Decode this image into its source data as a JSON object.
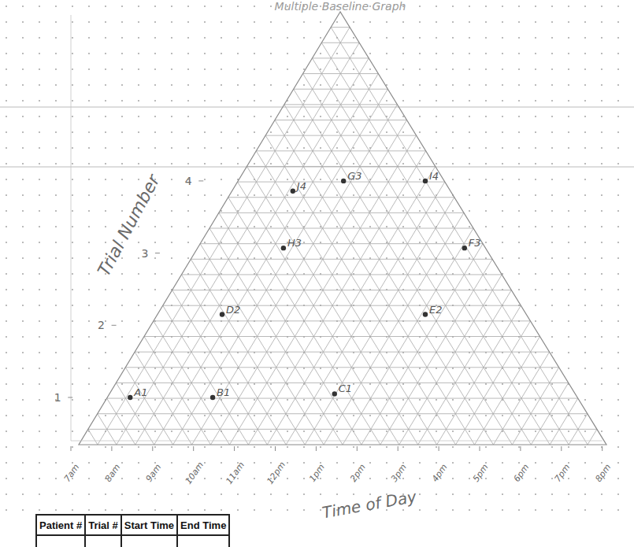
{
  "chart_data": {
    "type": "scatter",
    "title": "Multiple Baseline Graph",
    "x_label": "Time of Day",
    "y_label": "Trial Number",
    "x": [
      8.45,
      10.47,
      13.45,
      10.7,
      15.67,
      12.2,
      16.63,
      12.43,
      13.67,
      15.67
    ],
    "values": [
      1,
      1,
      1.05,
      2.15,
      2.15,
      3.07,
      3.07,
      3.86,
      4,
      4
    ],
    "point_labels": [
      "A1",
      "B1",
      "C1",
      "D2",
      "E2",
      "H3",
      "F3",
      "J4",
      "G3",
      "I4"
    ],
    "color": "#333333",
    "marker": "circle",
    "xlim": [
      7,
      20
    ],
    "ylim": [
      0.4,
      6.3
    ],
    "xticks": [
      {
        "value": 7,
        "label": "7am"
      },
      {
        "value": 8,
        "label": "8am"
      },
      {
        "value": 9,
        "label": "9am"
      },
      {
        "value": 10,
        "label": "10am"
      },
      {
        "value": 11,
        "label": "11am"
      },
      {
        "value": 12,
        "label": "12pm"
      },
      {
        "value": 13,
        "label": "1pm"
      },
      {
        "value": 14,
        "label": "2pm"
      },
      {
        "value": 15,
        "label": "3pm"
      },
      {
        "value": 16,
        "label": "4pm"
      },
      {
        "value": 17,
        "label": "5pm"
      },
      {
        "value": 18,
        "label": "6pm"
      },
      {
        "value": 19,
        "label": "7pm"
      },
      {
        "value": 20,
        "label": "8pm"
      }
    ],
    "yticks": [
      1,
      2,
      3,
      4
    ],
    "grid": true
  },
  "table": {
    "columns": [
      "Patient #",
      "Trial #",
      "Start Time",
      "End Time"
    ]
  }
}
